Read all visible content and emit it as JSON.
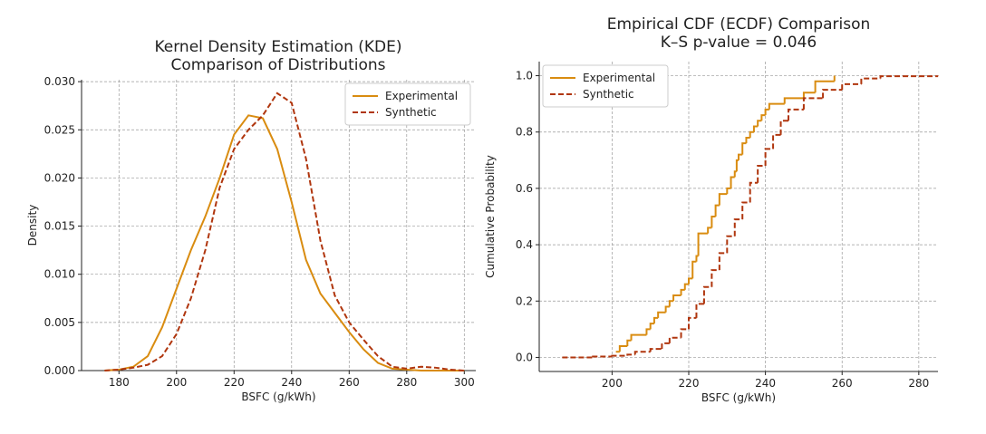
{
  "chart_data": [
    {
      "type": "line",
      "title": "Kernel Density Estimation (KDE)",
      "subtitle": "Comparison of Distributions",
      "xlabel": "BSFC (g/kWh)",
      "ylabel": "Density",
      "xlim": [
        167,
        304
      ],
      "ylim": [
        0,
        0.0302
      ],
      "xticks": [
        180,
        200,
        220,
        240,
        260,
        280,
        300
      ],
      "yticks": [
        {
          "value": 0,
          "label": "0.000"
        },
        {
          "value": 0.005,
          "label": "0.005"
        },
        {
          "value": 0.01,
          "label": "0.010"
        },
        {
          "value": 0.015,
          "label": "0.015"
        },
        {
          "value": 0.02,
          "label": "0.020"
        },
        {
          "value": 0.025,
          "label": "0.025"
        },
        {
          "value": 0.03,
          "label": "0.030"
        }
      ],
      "grid": true,
      "legend": "upper right",
      "series": [
        {
          "name": "Experimental",
          "color": "#d98c10",
          "dash": false,
          "x": [
            175,
            180,
            185,
            190,
            195,
            200,
            205,
            210,
            215,
            220,
            225,
            230,
            235,
            240,
            245,
            250,
            255,
            260,
            265,
            270,
            275,
            280,
            285,
            290,
            295,
            300
          ],
          "values": [
            0,
            0.0001,
            0.0004,
            0.0015,
            0.0045,
            0.0085,
            0.0125,
            0.016,
            0.02,
            0.0245,
            0.0265,
            0.0262,
            0.023,
            0.0175,
            0.0115,
            0.008,
            0.006,
            0.004,
            0.0022,
            0.0008,
            0.0002,
            0.0001,
            0,
            0,
            0,
            0
          ]
        },
        {
          "name": "Synthetic",
          "color": "#b0360e",
          "dash": true,
          "x": [
            175,
            180,
            185,
            190,
            195,
            200,
            205,
            210,
            215,
            220,
            225,
            230,
            235,
            240,
            245,
            250,
            255,
            260,
            265,
            270,
            275,
            280,
            285,
            290,
            295,
            300
          ],
          "values": [
            0,
            0.0001,
            0.0003,
            0.0006,
            0.0015,
            0.0038,
            0.0075,
            0.0125,
            0.019,
            0.023,
            0.025,
            0.0265,
            0.0288,
            0.0278,
            0.022,
            0.0135,
            0.0078,
            0.005,
            0.0032,
            0.0015,
            0.0004,
            0.0002,
            0.0004,
            0.0003,
            0.0001,
            0
          ]
        }
      ]
    },
    {
      "type": "step",
      "title": "Empirical CDF (ECDF) Comparison",
      "subtitle": "K–S p-value = 0.046",
      "xlabel": "BSFC (g/kWh)",
      "ylabel": "Cumulative Probability",
      "xlim": [
        181,
        285
      ],
      "ylim": [
        -0.05,
        1.05
      ],
      "xticks": [
        200,
        220,
        240,
        260,
        280
      ],
      "yticks": [
        {
          "value": 0,
          "label": "0.0"
        },
        {
          "value": 0.2,
          "label": "0.2"
        },
        {
          "value": 0.4,
          "label": "0.4"
        },
        {
          "value": 0.6,
          "label": "0.6"
        },
        {
          "value": 0.8,
          "label": "0.8"
        },
        {
          "value": 1,
          "label": "1.0"
        }
      ],
      "grid": true,
      "legend": "upper left",
      "series": [
        {
          "name": "Experimental",
          "color": "#d98c10",
          "dash": false,
          "x": [
            201,
            202,
            204,
            205,
            209,
            210,
            211,
            212,
            214,
            215,
            216,
            218,
            219,
            220,
            221,
            222,
            222.5,
            225,
            226,
            227,
            228,
            230,
            231,
            232,
            232.5,
            233,
            234,
            235,
            236,
            237,
            238,
            239,
            240,
            241,
            245,
            250,
            253,
            258
          ],
          "values": [
            0.02,
            0.04,
            0.06,
            0.08,
            0.1,
            0.12,
            0.14,
            0.16,
            0.18,
            0.2,
            0.22,
            0.24,
            0.26,
            0.28,
            0.34,
            0.36,
            0.44,
            0.46,
            0.5,
            0.54,
            0.58,
            0.6,
            0.64,
            0.66,
            0.7,
            0.72,
            0.76,
            0.78,
            0.8,
            0.82,
            0.84,
            0.86,
            0.88,
            0.9,
            0.92,
            0.94,
            0.98,
            1
          ]
        },
        {
          "name": "Synthetic",
          "color": "#b0360e",
          "dash": true,
          "x": [
            187,
            195,
            200,
            204,
            206,
            210,
            213,
            215,
            218,
            220,
            222,
            224,
            226,
            228,
            230,
            232,
            234,
            236,
            238,
            240,
            242,
            244,
            246,
            250,
            255,
            260,
            265,
            270,
            285
          ],
          "values": [
            0,
            0.003,
            0.006,
            0.01,
            0.02,
            0.03,
            0.05,
            0.07,
            0.1,
            0.14,
            0.19,
            0.25,
            0.31,
            0.37,
            0.43,
            0.49,
            0.55,
            0.62,
            0.68,
            0.74,
            0.79,
            0.84,
            0.88,
            0.92,
            0.95,
            0.97,
            0.99,
            0.998,
            1
          ]
        }
      ]
    }
  ]
}
